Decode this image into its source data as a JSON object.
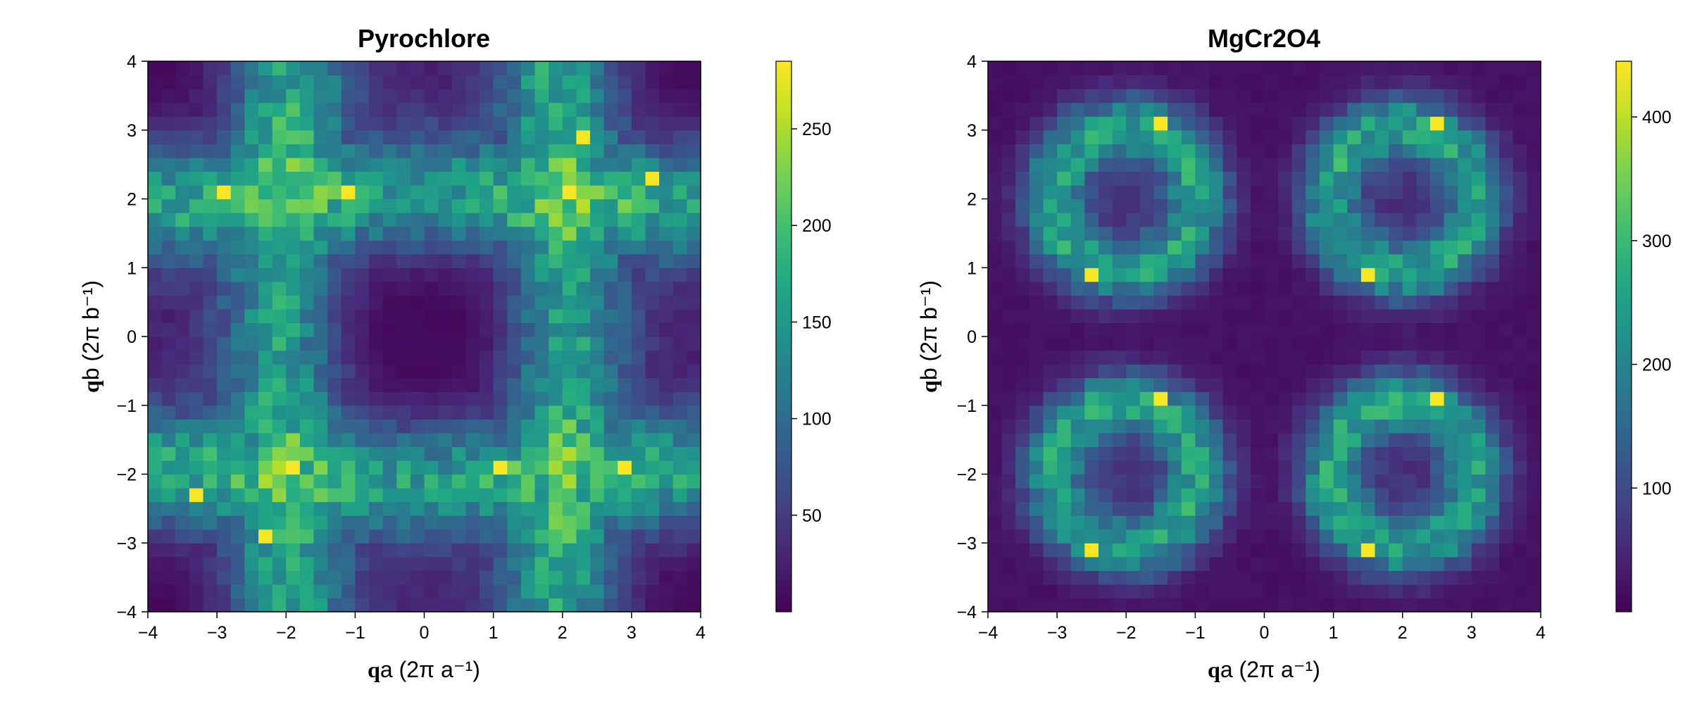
{
  "chart_data": [
    {
      "type": "heatmap",
      "title": "Pyrochlore",
      "xlabel_symbol": "q",
      "xlabel": "a (2π a⁻¹)",
      "ylabel_symbol": "q",
      "ylabel": "b (2π b⁻¹)",
      "xlim": [
        -4,
        4
      ],
      "ylim": [
        -4,
        4
      ],
      "x_ticks": [
        -4,
        -3,
        -2,
        -1,
        0,
        1,
        2,
        3,
        4
      ],
      "y_ticks": [
        -4,
        -3,
        -2,
        -1,
        0,
        1,
        2,
        3,
        4
      ],
      "x_tick_labels": [
        "−4",
        "−3",
        "−2",
        "−1",
        "0",
        "1",
        "2",
        "3",
        "4"
      ],
      "y_tick_labels": [
        "−4",
        "−3",
        "−2",
        "−1",
        "0",
        "1",
        "2",
        "3",
        "4"
      ],
      "grid": "off",
      "bins": 40,
      "colormap": "viridis",
      "color_range": [
        0,
        285
      ],
      "colorbar_ticks": [
        50,
        100,
        150,
        200,
        250
      ],
      "colorbar_tick_labels": [
        "50",
        "100",
        "150",
        "200",
        "250"
      ],
      "pattern": "intensity bands along qa = ±2 and qb = ±2, dark diamond-shaped pockets at (0,0) and (±4,±4), broad maxima near (±2,±2)",
      "hot_spots": [
        [
          2,
          2
        ],
        [
          -2,
          -2
        ],
        [
          2.3,
          2.85
        ],
        [
          -2.3,
          -2.85
        ],
        [
          3.35,
          2.3
        ],
        [
          -3.35,
          -2.3
        ],
        [
          -2.85,
          2
        ],
        [
          -1.2,
          2
        ],
        [
          1.15,
          -2
        ],
        [
          2.85,
          -2
        ]
      ]
    },
    {
      "type": "heatmap",
      "title": "MgCr2O4",
      "xlabel_symbol": "q",
      "xlabel": "a (2π a⁻¹)",
      "ylabel_symbol": "q",
      "ylabel": "b (2π b⁻¹)",
      "xlim": [
        -4,
        4
      ],
      "ylim": [
        -4,
        4
      ],
      "x_ticks": [
        -4,
        -3,
        -2,
        -1,
        0,
        1,
        2,
        3,
        4
      ],
      "y_ticks": [
        -4,
        -3,
        -2,
        -1,
        0,
        1,
        2,
        3,
        4
      ],
      "x_tick_labels": [
        "−4",
        "−3",
        "−2",
        "−1",
        "0",
        "1",
        "2",
        "3",
        "4"
      ],
      "y_tick_labels": [
        "−4",
        "−3",
        "−2",
        "−1",
        "0",
        "1",
        "2",
        "3",
        "4"
      ],
      "grid": "off",
      "bins": 40,
      "colormap": "viridis",
      "color_range": [
        0,
        445
      ],
      "colorbar_ticks": [
        100,
        200,
        300,
        400
      ],
      "colorbar_tick_labels": [
        "100",
        "200",
        "300",
        "400"
      ],
      "pattern": "four ring-shaped intensity regions centred at (±2,±2) with dark centres and dark background",
      "hot_spots": [
        [
          2.5,
          3.15
        ],
        [
          -2.5,
          -3.15
        ],
        [
          -1.5,
          3.15
        ],
        [
          1.5,
          -3.15
        ],
        [
          1.5,
          0.85
        ],
        [
          -1.5,
          -0.85
        ],
        [
          -2.5,
          0.85
        ],
        [
          2.5,
          -0.85
        ]
      ]
    }
  ]
}
